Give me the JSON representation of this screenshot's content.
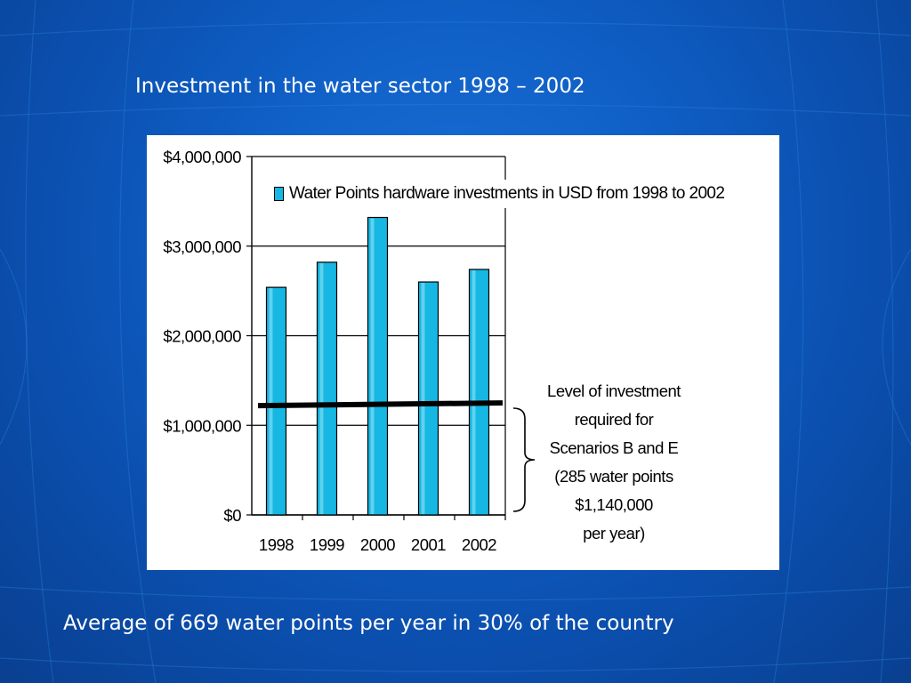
{
  "slide": {
    "title": "Investment in the water sector 1998 – 2002",
    "footer": "Average of 669 water points per year in 30% of the country"
  },
  "colors": {
    "background": "#0b4fae",
    "bar": "#16b7e2",
    "panel": "#ffffff"
  },
  "chart_data": {
    "type": "bar",
    "categories": [
      "1998",
      "1999",
      "2000",
      "2001",
      "2002"
    ],
    "series": [
      {
        "name": "Water Points hardware investments in USD from 1998 to 2002",
        "values": [
          2540000,
          2820000,
          3320000,
          2600000,
          2740000
        ]
      }
    ],
    "ylim": [
      0,
      4000000
    ],
    "yticks": [
      0,
      1000000,
      2000000,
      3000000,
      4000000
    ],
    "ytick_labels": [
      "$0",
      "$1,000,000",
      "$2,000,000",
      "$3,000,000",
      "$4,000,000"
    ],
    "grid": true,
    "legend_position": "top-right",
    "reference_line": {
      "value": 1140000,
      "start": 1220000,
      "end": 1250000
    },
    "annotation": [
      "Level of investment",
      "required for",
      "Scenarios B and E",
      "(285 water points",
      "$1,140,000",
      "per year)"
    ]
  }
}
